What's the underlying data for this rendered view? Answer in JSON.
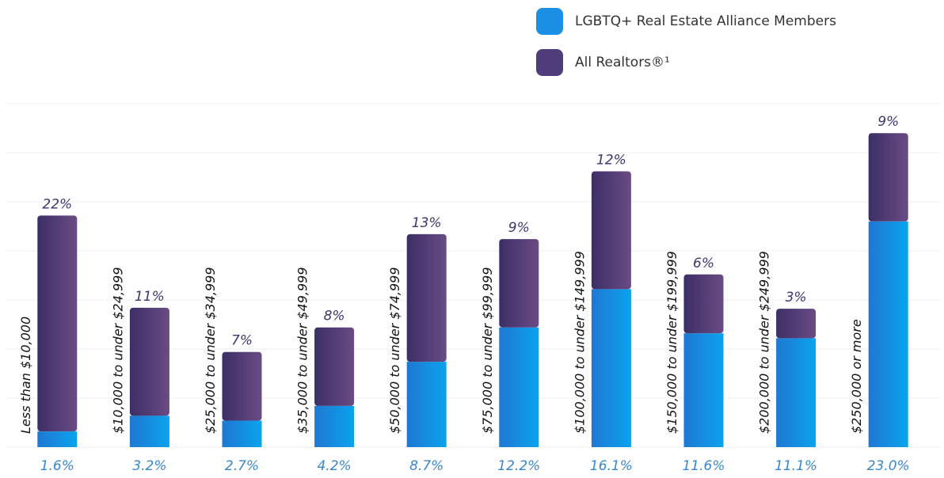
{
  "chart_data": {
    "type": "bar",
    "stacked": true,
    "categories": [
      "Less than $10,000",
      "$10,000 to under $24,999",
      "$25,000 to under $34,999",
      "$35,000 to under $49,999",
      "$50,000 to under $74,999",
      "$75,000 to under $99,999",
      "$100,000 to under $149,999",
      "$150,000 to under $199,999",
      "$200,000 to under $249,999",
      "$250,000 or more"
    ],
    "series": [
      {
        "name": "LGBTQ+ Real Estate Alliance Members",
        "color": "#1a8fe3",
        "values": [
          1.6,
          3.2,
          2.7,
          4.2,
          8.7,
          12.2,
          16.1,
          11.6,
          11.1,
          23.0
        ],
        "value_labels": [
          "1.6%",
          "3.2%",
          "2.7%",
          "4.2%",
          "8.7%",
          "12.2%",
          "16.1%",
          "11.6%",
          "11.1%",
          "23.0%"
        ]
      },
      {
        "name": "All Realtors®¹",
        "color": "#4f3c7a",
        "values": [
          22,
          11,
          7,
          8,
          13,
          9,
          12,
          6,
          3,
          9
        ],
        "value_labels": [
          "22%",
          "11%",
          "7%",
          "8%",
          "13%",
          "9%",
          "12%",
          "6%",
          "3%",
          "9%"
        ]
      }
    ],
    "ylim": [
      0,
      35
    ],
    "yticks": [
      0,
      5,
      10,
      15,
      20,
      25,
      30,
      35
    ],
    "grid": true
  }
}
